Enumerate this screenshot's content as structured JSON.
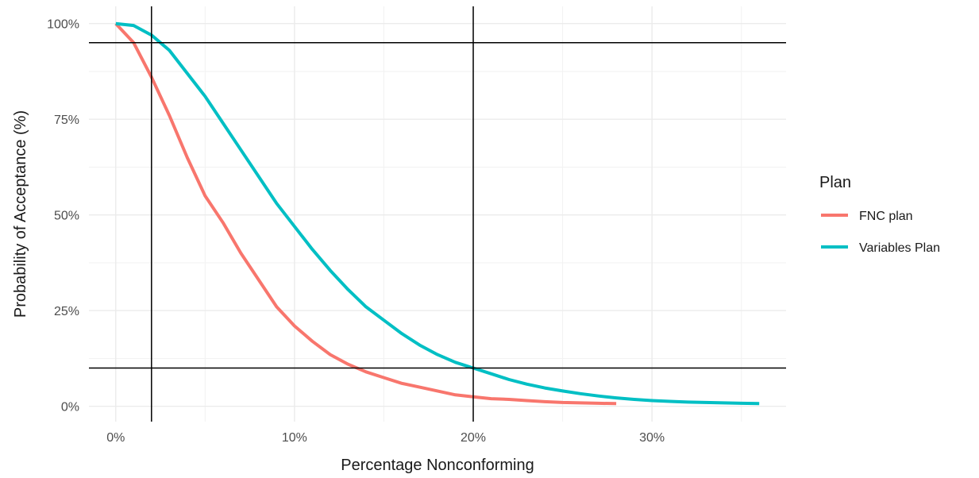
{
  "chart_data": {
    "type": "line",
    "title": "",
    "xlabel": "Percentage Nonconforming",
    "ylabel": "Probability of Acceptance (%)",
    "xlim": [
      -0.015,
      0.375
    ],
    "ylim": [
      -0.04,
      1.045
    ],
    "x_ticks": [
      0,
      0.1,
      0.2,
      0.3
    ],
    "x_tick_labels": [
      "0%",
      "10%",
      "20%",
      "30%"
    ],
    "y_ticks": [
      0,
      0.25,
      0.5,
      0.75,
      1.0
    ],
    "y_tick_labels": [
      "0%",
      "25%",
      "50%",
      "75%",
      "100%"
    ],
    "grid": true,
    "legend": {
      "title": "Plan",
      "position": "right"
    },
    "series": [
      {
        "name": "FNC plan",
        "color": "#F8766D",
        "x": [
          0,
          0.01,
          0.02,
          0.03,
          0.04,
          0.05,
          0.06,
          0.07,
          0.08,
          0.09,
          0.1,
          0.11,
          0.12,
          0.13,
          0.14,
          0.15,
          0.16,
          0.17,
          0.18,
          0.19,
          0.2,
          0.21,
          0.22,
          0.23,
          0.24,
          0.25,
          0.26,
          0.27,
          0.28
        ],
        "y": [
          1.0,
          0.95,
          0.86,
          0.76,
          0.65,
          0.55,
          0.48,
          0.4,
          0.33,
          0.26,
          0.21,
          0.17,
          0.135,
          0.11,
          0.09,
          0.075,
          0.06,
          0.05,
          0.04,
          0.03,
          0.025,
          0.02,
          0.018,
          0.015,
          0.012,
          0.01,
          0.009,
          0.008,
          0.007
        ]
      },
      {
        "name": "Variables Plan",
        "color": "#00BFC4",
        "x": [
          0,
          0.01,
          0.02,
          0.03,
          0.04,
          0.05,
          0.06,
          0.07,
          0.08,
          0.09,
          0.1,
          0.11,
          0.12,
          0.13,
          0.14,
          0.15,
          0.16,
          0.17,
          0.18,
          0.19,
          0.2,
          0.21,
          0.22,
          0.23,
          0.24,
          0.25,
          0.26,
          0.27,
          0.28,
          0.29,
          0.3,
          0.31,
          0.32,
          0.33,
          0.34,
          0.35,
          0.36
        ],
        "y": [
          1.0,
          0.995,
          0.97,
          0.93,
          0.87,
          0.81,
          0.74,
          0.67,
          0.6,
          0.53,
          0.47,
          0.41,
          0.355,
          0.305,
          0.26,
          0.225,
          0.19,
          0.16,
          0.135,
          0.115,
          0.1,
          0.085,
          0.07,
          0.058,
          0.048,
          0.04,
          0.033,
          0.027,
          0.022,
          0.018,
          0.015,
          0.013,
          0.011,
          0.01,
          0.009,
          0.008,
          0.007
        ]
      }
    ],
    "reference_lines": {
      "vertical": [
        0.02,
        0.2
      ],
      "horizontal": [
        0.95,
        0.1
      ],
      "color": "#000000"
    }
  }
}
